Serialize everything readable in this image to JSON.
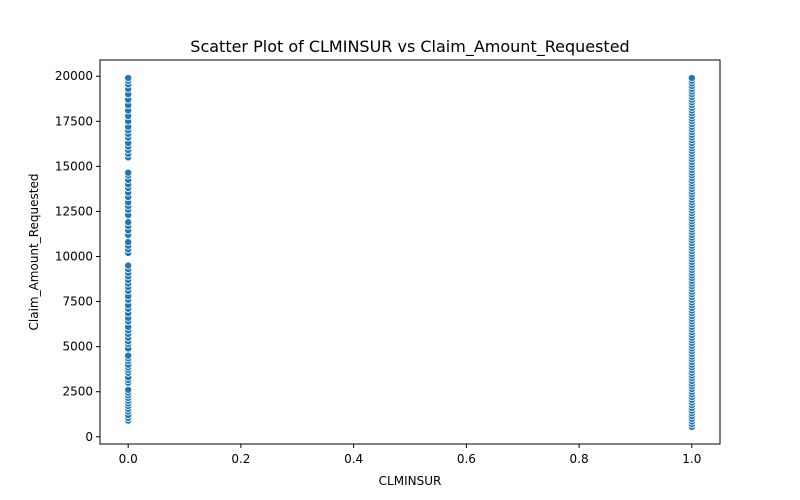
{
  "chart_data": {
    "type": "scatter",
    "title": "Scatter Plot of CLMINSUR vs Claim_Amount_Requested",
    "xlabel": "CLMINSUR",
    "ylabel": "Claim_Amount_Requested",
    "xlim": [
      -0.05,
      1.05
    ],
    "ylim": [
      -400,
      20900
    ],
    "xticks": [
      0.0,
      0.2,
      0.4,
      0.6,
      0.8,
      1.0
    ],
    "xtick_labels": [
      "0.0",
      "0.2",
      "0.4",
      "0.6",
      "0.8",
      "1.0"
    ],
    "yticks": [
      0,
      2500,
      5000,
      7500,
      10000,
      12500,
      15000,
      17500,
      20000
    ],
    "ytick_labels": [
      "0",
      "2500",
      "5000",
      "7500",
      "10000",
      "12500",
      "15000",
      "17500",
      "20000"
    ],
    "grid": false,
    "point_color": "#1f77b4",
    "series": [
      {
        "x": 0.0,
        "y": [
          900,
          1050,
          1200,
          1400,
          1550,
          1700,
          1850,
          2000,
          2150,
          2300,
          2450,
          2600,
          3000,
          3150,
          3300,
          3550,
          3700,
          3850,
          4000,
          4200,
          4350,
          4500,
          4900,
          5150,
          5300,
          5500,
          5700,
          5900,
          6100,
          6400,
          6600,
          6850,
          7100,
          7300,
          7600,
          7800,
          8100,
          8300,
          8500,
          8700,
          8900,
          9100,
          9300,
          9500,
          10200,
          10400,
          10600,
          10800,
          11200,
          11450,
          11700,
          11900,
          12300,
          12600,
          12800,
          13000,
          13300,
          13550,
          13800,
          14000,
          14250,
          14500,
          14650,
          15500,
          15700,
          15900,
          16100,
          16300,
          16600,
          16800,
          17000,
          17200,
          17500,
          17800,
          18100,
          18400,
          18700,
          19000,
          19300,
          19550,
          19750,
          19900
        ]
      },
      {
        "x": 1.0,
        "y": [
          550,
          700,
          850,
          1000,
          1150,
          1300,
          1450,
          1600,
          1750,
          1900,
          2050,
          2200,
          2350,
          2500,
          2650,
          2800,
          2950,
          3100,
          3250,
          3400,
          3550,
          3700,
          3850,
          4000,
          4150,
          4300,
          4450,
          4600,
          4750,
          4900,
          5050,
          5200,
          5350,
          5500,
          5650,
          5800,
          5950,
          6100,
          6250,
          6400,
          6550,
          6700,
          6850,
          7000,
          7150,
          7300,
          7450,
          7600,
          7750,
          7900,
          8050,
          8200,
          8350,
          8500,
          8650,
          8800,
          8950,
          9100,
          9250,
          9400,
          9550,
          9700,
          9850,
          10000,
          10150,
          10300,
          10450,
          10600,
          10750,
          10900,
          11050,
          11200,
          11350,
          11500,
          11650,
          11800,
          11950,
          12100,
          12250,
          12400,
          12550,
          12700,
          12850,
          13000,
          13150,
          13300,
          13450,
          13600,
          13750,
          13900,
          14050,
          14200,
          14350,
          14500,
          14650,
          14800,
          14950,
          15100,
          15250,
          15400,
          15550,
          15700,
          15850,
          16000,
          16150,
          16300,
          16450,
          16600,
          16750,
          16900,
          17050,
          17200,
          17350,
          17500,
          17650,
          17800,
          17950,
          18100,
          18250,
          18400,
          18550,
          18700,
          18850,
          19000,
          19150,
          19300,
          19450,
          19600,
          19750,
          19900
        ]
      }
    ]
  }
}
